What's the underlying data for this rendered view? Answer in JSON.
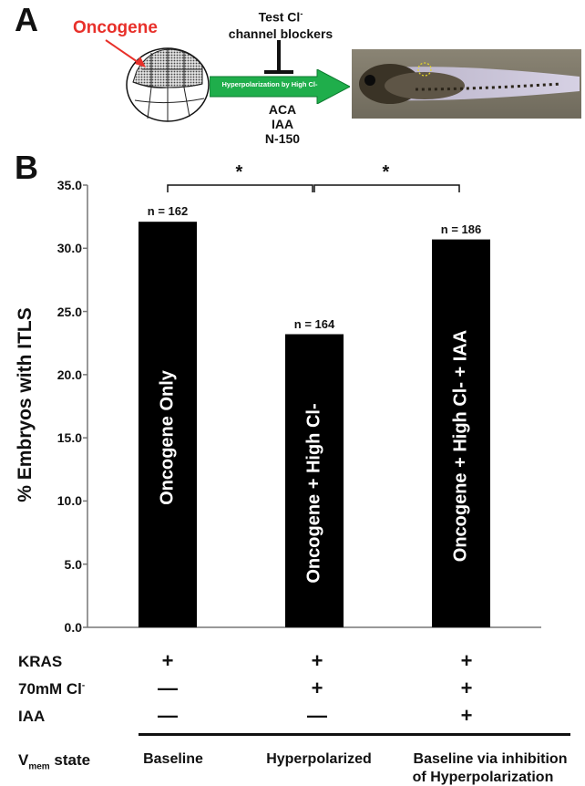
{
  "panelA": {
    "letter": "A",
    "oncogene_label": "Oncogene",
    "test_label_1": "Test Cl",
    "test_label_sup": "-",
    "test_label_2": "channel blockers",
    "arrow_text": "Hyperpolarization by High Cl-",
    "blockers": [
      "ACA",
      "IAA",
      "N-150"
    ],
    "colors": {
      "oncogene_red": "#e8302a",
      "arrow_green": "#1fae4b"
    }
  },
  "panelB": {
    "letter": "B"
  },
  "chart_data": {
    "type": "bar",
    "title": "",
    "ylabel": "% Embryos with ITLS",
    "xlabel": "",
    "ylim": [
      0,
      35
    ],
    "yticks": [
      "0.0",
      "5.0",
      "10.0",
      "15.0",
      "20.0",
      "25.0",
      "30.0",
      "35.0"
    ],
    "categories": [
      "Oncogene Only",
      "Oncogene + High Cl-",
      "Oncogene + High Cl- + IAA"
    ],
    "values": [
      32.1,
      23.2,
      30.7
    ],
    "n_labels": [
      "n = 162",
      "n = 164",
      "n = 186"
    ],
    "significance": [
      {
        "from": 0,
        "to": 1,
        "label": "*"
      },
      {
        "from": 1,
        "to": 2,
        "label": "*"
      }
    ],
    "grid": false,
    "bar_color": "#000000"
  },
  "conditions": {
    "rows": [
      {
        "label": "KRAS",
        "sup": "",
        "values": [
          "+",
          "+",
          "+"
        ]
      },
      {
        "label": "70mM Cl",
        "sup": "-",
        "values": [
          "—",
          "+",
          "+"
        ]
      },
      {
        "label": "IAA",
        "sup": "",
        "values": [
          "—",
          "—",
          "+"
        ]
      }
    ],
    "vmem_label": "V",
    "vmem_sub": "mem",
    "vmem_suffix": " state",
    "states": [
      "Baseline",
      "Hyperpolarized",
      "Baseline via inhibition",
      "of Hyperpolarization"
    ]
  }
}
